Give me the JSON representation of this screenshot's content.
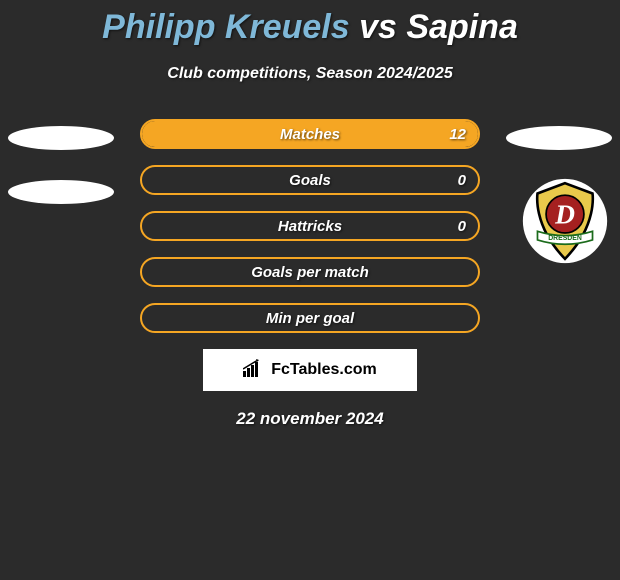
{
  "title": {
    "player1": "Philipp Kreuels",
    "vs": "vs",
    "player2": "Sapina",
    "player1_color": "#7fb8d8",
    "vs_color": "#ffffff",
    "player2_color": "#ffffff"
  },
  "subtitle": "Club competitions, Season 2024/2025",
  "stats": [
    {
      "label": "Matches",
      "value": "12",
      "fill_pct": 100,
      "border_color": "#f5a623",
      "fill_color": "#f5a623"
    },
    {
      "label": "Goals",
      "value": "0",
      "fill_pct": 0,
      "border_color": "#f5a623",
      "fill_color": "#f5a623"
    },
    {
      "label": "Hattricks",
      "value": "0",
      "fill_pct": 0,
      "border_color": "#f5a623",
      "fill_color": "#f5a623"
    },
    {
      "label": "Goals per match",
      "value": "",
      "fill_pct": 0,
      "border_color": "#f5a623",
      "fill_color": "#f5a623"
    },
    {
      "label": "Min per goal",
      "value": "",
      "fill_pct": 0,
      "border_color": "#f5a623",
      "fill_color": "#f5a623"
    }
  ],
  "brand": "FcTables.com",
  "date": "22 november 2024",
  "badge": {
    "outer_bg": "#ffffff",
    "shield_bg": "#e9c94b",
    "shield_stroke": "#000000",
    "d_bg": "#a52020",
    "d_text": "D",
    "banner_text": "DRESDEN",
    "banner_bg": "#ffffff",
    "banner_stroke": "#1b6b1b"
  },
  "colors": {
    "page_bg": "#2b2b2b"
  }
}
